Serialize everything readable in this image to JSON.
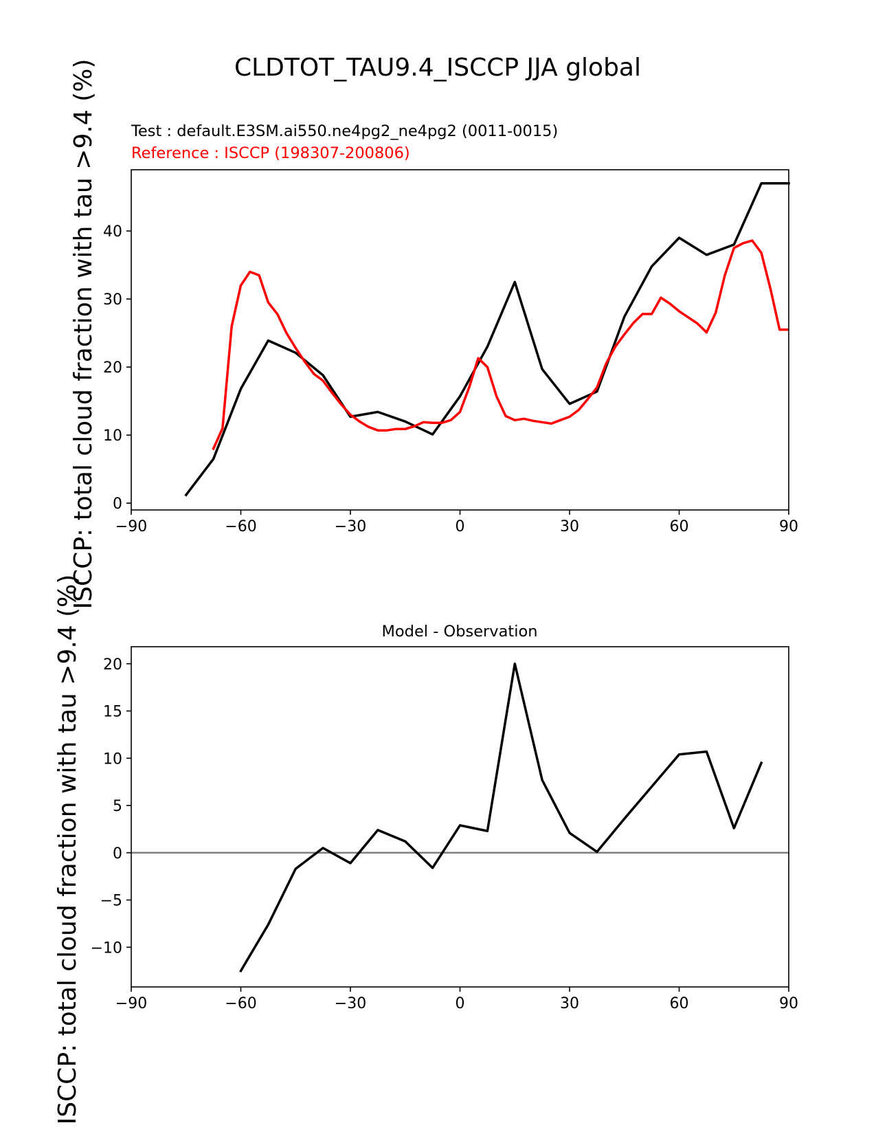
{
  "figure": {
    "title": "CLDTOT_TAU9.4_ISCCP JJA global",
    "test_label": "Test : default.E3SM.ai550.ne4pg2_ne4pg2 (0011-0015)",
    "reference_label": "Reference : ISCCP (198307-200806)"
  },
  "colors": {
    "test": "#000000",
    "reference": "#ff0000",
    "zero_line": "#808080"
  },
  "chart_data": [
    {
      "type": "line",
      "title": "",
      "ylabel": "ISCCP: total cloud fraction with tau >9.4 (%)",
      "xlim": [
        -90,
        90
      ],
      "ylim": [
        -1,
        49
      ],
      "xticks": [
        -90,
        -60,
        -30,
        0,
        30,
        60,
        90
      ],
      "xtick_labels": [
        "−90",
        "−60",
        "−30",
        "0",
        "30",
        "60",
        "90"
      ],
      "yticks": [
        0,
        10,
        20,
        30,
        40
      ],
      "ytick_labels": [
        "0",
        "10",
        "20",
        "30",
        "40"
      ],
      "series": [
        {
          "role": "test",
          "x": [
            -75,
            -67.5,
            -60,
            -52.5,
            -45,
            -37.5,
            -30,
            -22.5,
            -15,
            -7.5,
            0,
            7.5,
            15,
            22.5,
            30,
            37.5,
            45,
            52.5,
            60,
            67.5,
            75,
            82.5,
            90
          ],
          "y": [
            1.2,
            6.5,
            16.8,
            23.9,
            22.1,
            18.8,
            12.7,
            13.4,
            12.0,
            10.1,
            15.7,
            23.0,
            32.5,
            19.7,
            14.6,
            16.4,
            27.4,
            34.8,
            39.0,
            36.5,
            38.0,
            47.0,
            47.0
          ]
        },
        {
          "role": "reference",
          "x": [
            -67.5,
            -65,
            -62.5,
            -60,
            -57.5,
            -55,
            -52.5,
            -50,
            -47.5,
            -45,
            -42.5,
            -40,
            -37.5,
            -35,
            -32.5,
            -30,
            -27.5,
            -25,
            -22.5,
            -20,
            -17.5,
            -15,
            -12.5,
            -10,
            -7.5,
            -5,
            -2.5,
            0,
            2.5,
            5,
            7.5,
            10,
            12.5,
            15,
            17.5,
            20,
            22.5,
            25,
            27.5,
            30,
            32.5,
            35,
            37.5,
            40,
            42.5,
            45,
            47.5,
            50,
            52.5,
            55,
            57.5,
            60,
            62.5,
            65,
            67.5,
            70,
            72.5,
            75,
            77.5,
            80,
            82.5,
            85,
            87.5,
            89.5
          ],
          "y": [
            8.0,
            11.0,
            26.0,
            32.0,
            34.0,
            33.5,
            29.5,
            27.8,
            25.0,
            22.8,
            20.8,
            19.0,
            18.0,
            16.2,
            14.5,
            13.0,
            12.0,
            11.2,
            10.7,
            10.7,
            10.9,
            10.9,
            11.3,
            11.9,
            11.8,
            11.8,
            12.2,
            13.4,
            17.0,
            21.3,
            20.0,
            15.7,
            12.8,
            12.2,
            12.4,
            12.1,
            11.9,
            11.7,
            12.2,
            12.7,
            13.7,
            15.3,
            17.0,
            20.5,
            23.0,
            24.8,
            26.5,
            27.8,
            27.8,
            30.2,
            29.3,
            28.2,
            27.3,
            26.4,
            25.1,
            28.0,
            33.5,
            37.5,
            38.2,
            38.6,
            36.8,
            31.5,
            25.5,
            25.5
          ]
        }
      ]
    },
    {
      "type": "line",
      "title": "Model - Observation",
      "ylabel": "ISCCP: total cloud fraction with tau >9.4 (%)",
      "xlim": [
        -90,
        90
      ],
      "ylim": [
        -14.2,
        21.8
      ],
      "xticks": [
        -90,
        -60,
        -30,
        0,
        30,
        60,
        90
      ],
      "xtick_labels": [
        "−90",
        "−60",
        "−30",
        "0",
        "30",
        "60",
        "90"
      ],
      "yticks": [
        -10,
        -5,
        0,
        5,
        10,
        15,
        20
      ],
      "ytick_labels": [
        "−10",
        "−5",
        "0",
        "5",
        "10",
        "15",
        "20"
      ],
      "zero_line": 0,
      "series": [
        {
          "role": "difference",
          "x": [
            -60,
            -52.5,
            -45,
            -37.5,
            -30,
            -22.5,
            -15,
            -7.5,
            0,
            7.5,
            15,
            22.5,
            30,
            37.5,
            45,
            52.5,
            60,
            67.5,
            75,
            82.5
          ],
          "y": [
            -12.5,
            -7.6,
            -1.7,
            0.5,
            -1.1,
            2.4,
            1.2,
            -1.6,
            2.9,
            2.3,
            20.0,
            7.7,
            2.1,
            0.1,
            3.6,
            7.0,
            10.4,
            10.7,
            2.6,
            9.5
          ]
        }
      ]
    }
  ]
}
